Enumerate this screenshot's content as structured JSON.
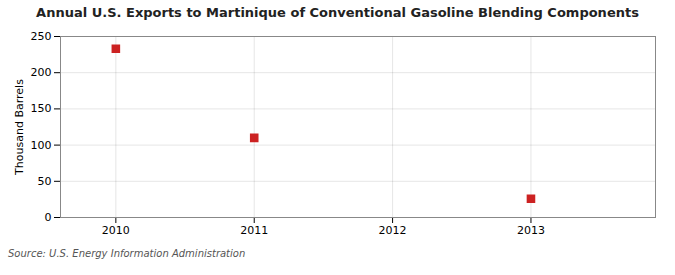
{
  "chart_data": {
    "type": "scatter",
    "title": "Annual U.S. Exports to Martinique of Conventional Gasoline Blending Components",
    "ylabel": "Thousand Barrels",
    "source": "Source: U.S. Energy Information Administration",
    "x": [
      2010,
      2011,
      2013
    ],
    "values": [
      233,
      110,
      26
    ],
    "color": "#cc2222",
    "marker": "square",
    "xlim": [
      2009.6,
      2013.9
    ],
    "ylim": [
      0,
      250
    ],
    "xticks": [
      2010,
      2011,
      2012,
      2013
    ],
    "yticks": [
      0,
      50,
      100,
      150,
      200,
      250
    ],
    "grid": true
  }
}
